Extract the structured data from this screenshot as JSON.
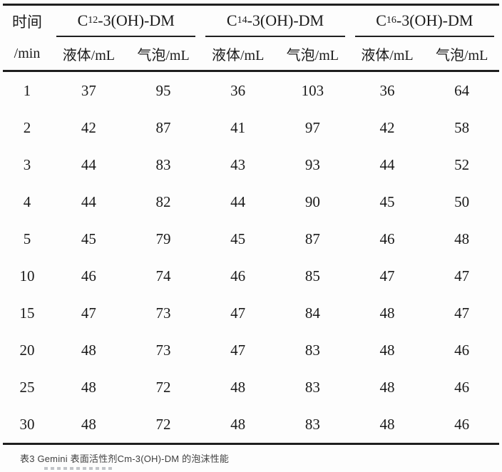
{
  "table": {
    "time_header_line1": "时间",
    "time_header_line2": "/min",
    "groups": [
      {
        "prefix": "C",
        "sub": "12",
        "suffix": "-3(OH)-DM"
      },
      {
        "prefix": "C",
        "sub": "14",
        "suffix": "-3(OH)-DM"
      },
      {
        "prefix": "C",
        "sub": "16",
        "suffix": "-3(OH)-DM"
      }
    ],
    "subcolumns": [
      "液体/mL",
      "气泡/mL"
    ],
    "rows": [
      {
        "time": "1",
        "values": [
          "37",
          "95",
          "36",
          "103",
          "36",
          "64"
        ]
      },
      {
        "time": "2",
        "values": [
          "42",
          "87",
          "41",
          "97",
          "42",
          "58"
        ]
      },
      {
        "time": "3",
        "values": [
          "44",
          "83",
          "43",
          "93",
          "44",
          "52"
        ]
      },
      {
        "time": "4",
        "values": [
          "44",
          "82",
          "44",
          "90",
          "45",
          "50"
        ]
      },
      {
        "time": "5",
        "values": [
          "45",
          "79",
          "45",
          "87",
          "46",
          "48"
        ]
      },
      {
        "time": "10",
        "values": [
          "46",
          "74",
          "46",
          "85",
          "47",
          "47"
        ]
      },
      {
        "time": "15",
        "values": [
          "47",
          "73",
          "47",
          "84",
          "48",
          "47"
        ]
      },
      {
        "time": "20",
        "values": [
          "48",
          "73",
          "47",
          "83",
          "48",
          "46"
        ]
      },
      {
        "time": "25",
        "values": [
          "48",
          "72",
          "48",
          "83",
          "48",
          "46"
        ]
      },
      {
        "time": "30",
        "values": [
          "48",
          "72",
          "48",
          "83",
          "48",
          "46"
        ]
      }
    ]
  },
  "caption": {
    "text": "表3 Gemini 表面活性剂Cm-3(OH)-DM 的泡沫性能"
  },
  "colors": {
    "text": "#1a1a1a",
    "rule": "#1f1f1f",
    "caption_text": "#404040",
    "background": "#fdfdfd"
  },
  "chart_data": {
    "type": "table",
    "title": "表3 Gemini 表面活性剂Cm-3(OH)-DM 的泡沫性能",
    "xlabel": "时间/min",
    "x": [
      1,
      2,
      3,
      4,
      5,
      10,
      15,
      20,
      25,
      30
    ],
    "series": [
      {
        "name": "C12-3(OH)-DM 液体/mL",
        "values": [
          37,
          42,
          44,
          44,
          45,
          46,
          47,
          48,
          48,
          48
        ]
      },
      {
        "name": "C12-3(OH)-DM 气泡/mL",
        "values": [
          95,
          87,
          83,
          82,
          79,
          74,
          73,
          73,
          72,
          72
        ]
      },
      {
        "name": "C14-3(OH)-DM 液体/mL",
        "values": [
          36,
          41,
          43,
          44,
          45,
          46,
          47,
          47,
          48,
          48
        ]
      },
      {
        "name": "C14-3(OH)-DM 气泡/mL",
        "values": [
          103,
          97,
          93,
          90,
          87,
          85,
          84,
          83,
          83,
          83
        ]
      },
      {
        "name": "C16-3(OH)-DM 液体/mL",
        "values": [
          36,
          42,
          44,
          45,
          46,
          47,
          48,
          48,
          48,
          48
        ]
      },
      {
        "name": "C16-3(OH)-DM 气泡/mL",
        "values": [
          64,
          58,
          52,
          50,
          48,
          47,
          47,
          46,
          46,
          46
        ]
      }
    ]
  }
}
